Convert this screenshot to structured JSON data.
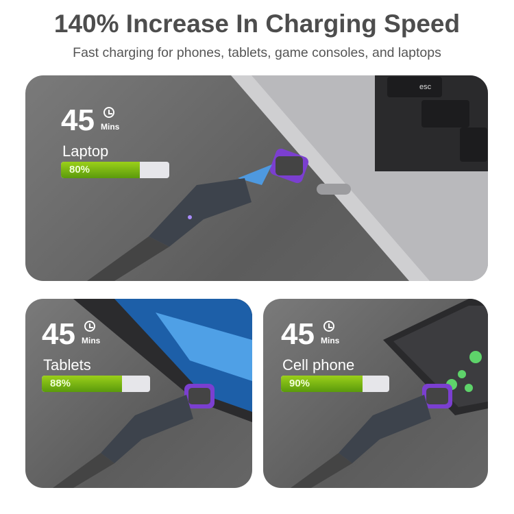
{
  "header": {
    "title": "140% Increase In Charging Speed",
    "subtitle": "Fast charging for phones, tablets, game consoles, and laptops"
  },
  "panels": [
    {
      "time": "45",
      "unit": "Mins",
      "device": "Laptop",
      "percent_label": "80%",
      "percent": 80,
      "key_label": "esc"
    },
    {
      "time": "45",
      "unit": "Mins",
      "device": "Tablets",
      "percent_label": "88%",
      "percent": 88
    },
    {
      "time": "45",
      "unit": "Mins",
      "device": "Cell phone",
      "percent_label": "90%",
      "percent": 90
    }
  ],
  "colors": {
    "bar_fill": "#7cb814",
    "bar_track": "#e6e6ea",
    "panel_bg": "#6b6b6b",
    "title": "#4d4d4d",
    "magnet_accent": "#7b3fd0",
    "lightning": "#4aa8ff"
  }
}
